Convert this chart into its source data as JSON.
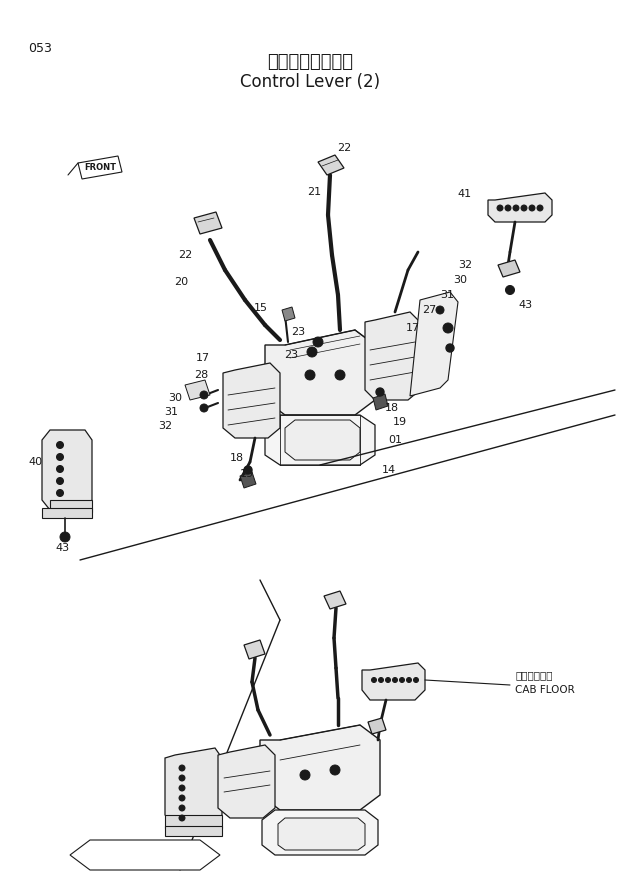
{
  "title_japanese": "操作レバー（２）",
  "title_english": "Control Lever (2)",
  "page_number": "053",
  "bg": "#ffffff",
  "lc": "#1a1a1a",
  "fig_w": 6.2,
  "fig_h": 8.76,
  "dpi": 100
}
